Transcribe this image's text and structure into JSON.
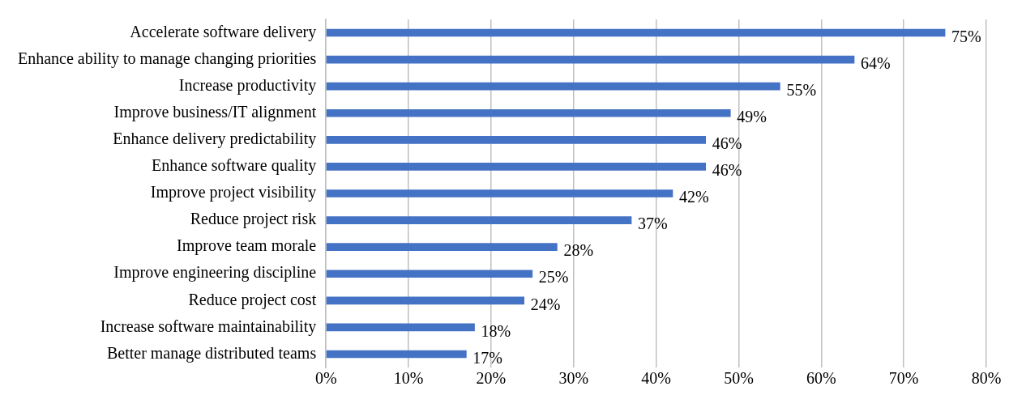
{
  "chart_data": {
    "type": "bar",
    "orientation": "horizontal",
    "categories": [
      "Accelerate software delivery",
      "Enhance ability to manage changing priorities",
      "Increase productivity",
      "Improve business/IT alignment",
      "Enhance delivery predictability",
      "Enhance software quality",
      "Improve project visibility",
      "Reduce project risk",
      "Improve team morale",
      "Improve engineering discipline",
      "Reduce project cost",
      "Increase software maintainability",
      "Better manage distributed teams"
    ],
    "values": [
      75,
      64,
      55,
      49,
      46,
      46,
      42,
      37,
      28,
      25,
      24,
      18,
      17
    ],
    "value_labels": [
      "75%",
      "64%",
      "55%",
      "49%",
      "46%",
      "46%",
      "42%",
      "37%",
      "28%",
      "25%",
      "24%",
      "18%",
      "17%"
    ],
    "color": "#4472c4",
    "xlim": [
      0,
      80
    ],
    "xticks": [
      {
        "value": 0,
        "label": "0%"
      },
      {
        "value": 10,
        "label": "10%"
      },
      {
        "value": 20,
        "label": "20%"
      },
      {
        "value": 30,
        "label": "30%"
      },
      {
        "value": 40,
        "label": "40%"
      },
      {
        "value": 50,
        "label": "50%"
      },
      {
        "value": 60,
        "label": "60%"
      },
      {
        "value": 70,
        "label": "70%"
      },
      {
        "value": 80,
        "label": "80%"
      }
    ],
    "grid": "x",
    "legend": false
  }
}
